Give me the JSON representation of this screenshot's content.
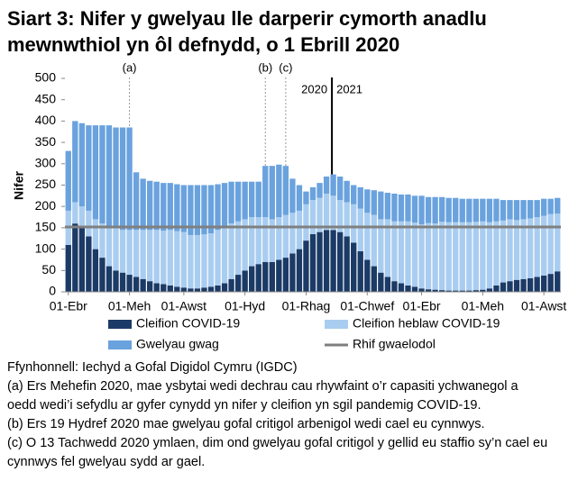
{
  "chart_data": {
    "type": "stacked-bar",
    "title": "Siart 3: Nifer y gwelyau lle darperir cymorth anadlu mewnwthiol yn ôl defnydd, o 1 Ebrill 2020",
    "y_label": "Nifer",
    "categories": [
      "01-Ebr",
      null,
      null,
      null,
      null,
      null,
      null,
      null,
      null,
      "01-Meh",
      null,
      null,
      null,
      null,
      null,
      null,
      null,
      "01-Awst",
      null,
      null,
      null,
      null,
      null,
      null,
      null,
      null,
      "01-Hyd",
      null,
      null,
      null,
      null,
      null,
      null,
      null,
      null,
      "01-Rhag",
      null,
      null,
      null,
      null,
      null,
      null,
      null,
      null,
      "01-Chwef",
      null,
      null,
      null,
      null,
      null,
      null,
      null,
      "01-Ebr",
      null,
      null,
      null,
      null,
      null,
      null,
      null,
      null,
      "01-Meh",
      null,
      null,
      null,
      null,
      null,
      null,
      null,
      null,
      "01-Awst",
      null,
      null
    ],
    "series": [
      {
        "name": "Cleifion COVID-19",
        "color": "#1b3a66",
        "values": [
          110,
          160,
          150,
          130,
          100,
          80,
          60,
          50,
          45,
          40,
          35,
          30,
          25,
          20,
          18,
          15,
          12,
          10,
          8,
          8,
          10,
          12,
          15,
          20,
          30,
          40,
          50,
          60,
          65,
          70,
          70,
          75,
          80,
          90,
          100,
          120,
          135,
          140,
          145,
          145,
          140,
          130,
          115,
          95,
          75,
          60,
          45,
          35,
          25,
          20,
          15,
          12,
          8,
          6,
          5,
          4,
          3,
          3,
          3,
          3,
          4,
          5,
          8,
          15,
          22,
          25,
          28,
          30,
          32,
          35,
          38,
          42,
          48
        ]
      },
      {
        "name": "Cleifion heblaw COVID-19",
        "color": "#a9cdf0",
        "values": [
          80,
          50,
          50,
          60,
          70,
          80,
          90,
          100,
          100,
          105,
          110,
          115,
          120,
          125,
          125,
          130,
          130,
          130,
          125,
          125,
          125,
          125,
          130,
          135,
          130,
          125,
          120,
          115,
          110,
          105,
          100,
          100,
          100,
          95,
          90,
          85,
          80,
          80,
          85,
          80,
          75,
          80,
          90,
          100,
          110,
          120,
          125,
          135,
          140,
          145,
          150,
          150,
          150,
          155,
          155,
          160,
          160,
          160,
          160,
          160,
          160,
          160,
          155,
          150,
          145,
          145,
          140,
          140,
          140,
          140,
          140,
          140,
          135
        ]
      },
      {
        "name": "Gwelyau gwag",
        "color": "#6aa2de",
        "values": [
          140,
          190,
          195,
          200,
          220,
          230,
          240,
          235,
          240,
          240,
          135,
          120,
          115,
          113,
          112,
          110,
          110,
          110,
          117,
          117,
          115,
          113,
          107,
          100,
          98,
          93,
          88,
          83,
          83,
          120,
          125,
          123,
          115,
          80,
          60,
          30,
          30,
          35,
          40,
          50,
          55,
          50,
          45,
          50,
          55,
          58,
          65,
          62,
          65,
          63,
          63,
          63,
          67,
          61,
          62,
          58,
          57,
          57,
          55,
          55,
          54,
          53,
          55,
          53,
          48,
          45,
          47,
          45,
          43,
          40,
          40,
          36,
          37
        ]
      }
    ],
    "baseline": {
      "name": "Rhif gwaelodol",
      "color": "#7f7f7f",
      "value": 152
    },
    "ylim": [
      0,
      500
    ],
    "yticks": [
      0,
      50,
      100,
      150,
      200,
      250,
      300,
      350,
      400,
      450,
      500
    ],
    "grid": false,
    "annotations": [
      {
        "label": "(a)",
        "index": 9
      },
      {
        "label": "(b)",
        "index": 29
      },
      {
        "label": "(c)",
        "index": 32
      }
    ],
    "year_divider": {
      "index": 39,
      "left": "2020",
      "right": "2021"
    },
    "notes": [
      "Ffynhonnell: Iechyd a Gofal Digidol Cymru (IGDC)",
      "(a) Ers Mehefin 2020, mae ysbytai wedi dechrau cau rhywfaint o’r capasiti ychwanegol a oedd wedi’i sefydlu ar gyfer cynydd yn nifer y cleifion yn sgil pandemig COVID-19.",
      "(b) Ers 19 Hydref 2020 mae gwelyau gofal critigol arbenigol wedi cael eu cynnwys.",
      "(c) O 13 Tachwedd 2020 ymlaen, dim ond gwelyau gofal critigol y gellid eu staffio sy’n cael eu cynnwys fel gwelyau sydd ar gael."
    ]
  }
}
